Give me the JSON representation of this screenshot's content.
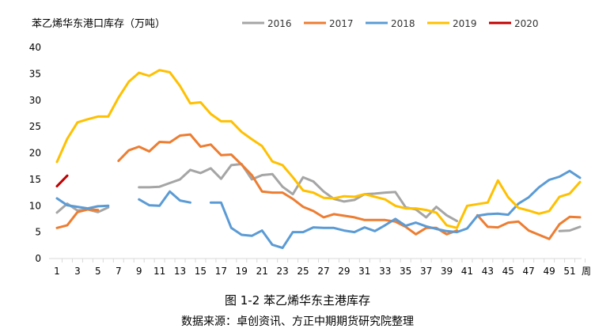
{
  "chart_data": {
    "type": "line",
    "title": "苯乙烯华东港口库存（万吨）",
    "xlabel": "",
    "ylabel": "",
    "x_unit_label": "周",
    "ylim": [
      0,
      40
    ],
    "yticks": [
      0,
      5,
      10,
      15,
      20,
      25,
      30,
      35,
      40
    ],
    "xlim": [
      1,
      52
    ],
    "xticks": [
      1,
      3,
      5,
      7,
      9,
      11,
      13,
      15,
      17,
      19,
      21,
      23,
      25,
      27,
      29,
      31,
      33,
      35,
      37,
      39,
      41,
      43,
      45,
      47,
      49,
      51
    ],
    "grid": false,
    "legend_position": "top",
    "series": [
      {
        "name": "2016",
        "color": "#a5a5a5",
        "values": [
          8.7,
          10.4,
          9.1,
          9.3,
          8.8,
          9.7,
          null,
          null,
          13.5,
          13.5,
          13.6,
          14.3,
          15.0,
          16.8,
          16.2,
          17.1,
          15.1,
          17.7,
          17.9,
          15.0,
          15.8,
          16.0,
          13.6,
          12.2,
          15.4,
          14.6,
          12.7,
          11.3,
          10.8,
          11.1,
          12.2,
          12.3,
          12.5,
          12.6,
          9.7,
          9.3,
          7.8,
          9.8,
          8.2,
          7.1,
          null,
          null,
          null,
          null,
          null,
          null,
          null,
          null,
          null,
          5.2,
          5.3,
          6.0
        ]
      },
      {
        "name": "2017",
        "color": "#ed7d31",
        "values": [
          5.8,
          6.3,
          8.8,
          9.3,
          9.2,
          null,
          18.5,
          20.5,
          21.2,
          20.3,
          22.1,
          22.0,
          23.3,
          23.5,
          21.2,
          21.6,
          19.6,
          19.7,
          17.8,
          15.8,
          12.7,
          12.5,
          12.5,
          11.3,
          9.8,
          9.0,
          7.8,
          8.4,
          8.1,
          7.8,
          7.3,
          7.3,
          7.3,
          7.0,
          6.0,
          4.6,
          5.8,
          5.8,
          4.6,
          5.3,
          null,
          8.2,
          6.0,
          5.9,
          6.8,
          7.0,
          5.3,
          4.5,
          3.7,
          6.5,
          7.9,
          7.8
        ]
      },
      {
        "name": "2018",
        "color": "#5b9bd5",
        "values": [
          11.4,
          10.1,
          9.8,
          9.5,
          9.9,
          10.0,
          null,
          null,
          11.2,
          10.1,
          10.0,
          12.7,
          11.0,
          10.6,
          null,
          10.6,
          10.6,
          5.8,
          4.5,
          4.3,
          5.3,
          2.6,
          2.0,
          5.0,
          5.0,
          5.9,
          5.8,
          5.8,
          5.3,
          5.0,
          5.9,
          5.2,
          6.3,
          7.5,
          6.2,
          6.8,
          6.1,
          5.6,
          5.2,
          5.0,
          5.7,
          8.1,
          8.4,
          8.5,
          8.3,
          10.4,
          11.6,
          13.5,
          14.9,
          15.5,
          16.6,
          15.3
        ]
      },
      {
        "name": "2019",
        "color": "#ffc000",
        "values": [
          18.3,
          22.7,
          25.8,
          26.4,
          26.9,
          26.9,
          30.5,
          33.5,
          35.2,
          34.6,
          35.7,
          35.3,
          32.7,
          29.4,
          29.6,
          27.4,
          26.0,
          26.0,
          24.0,
          22.6,
          21.3,
          18.4,
          17.7,
          15.4,
          12.9,
          12.5,
          11.5,
          11.4,
          11.8,
          11.7,
          12.2,
          11.7,
          11.2,
          10.0,
          9.5,
          9.5,
          9.2,
          8.7,
          6.3,
          5.8,
          10.0,
          10.3,
          10.6,
          14.8,
          11.6,
          9.6,
          9.1,
          8.5,
          9.0,
          11.7,
          12.3,
          14.5
        ]
      },
      {
        "name": "2020",
        "color": "#c00000",
        "values": [
          13.7,
          15.7
        ]
      }
    ]
  },
  "caption": {
    "figure": "图 1-2  苯乙烯华东主港库存",
    "source": "数据来源：卓创资讯、方正中期期货研究院整理"
  }
}
